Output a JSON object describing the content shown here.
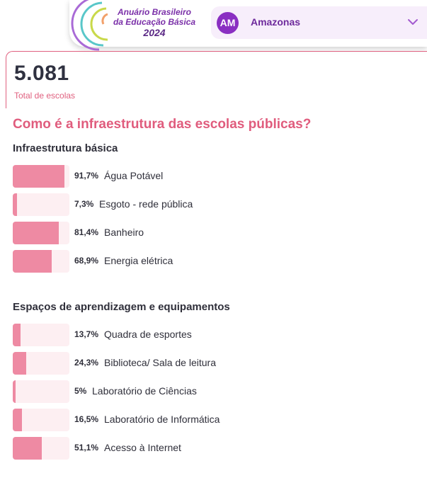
{
  "header": {
    "brand_line1": "Anuário Brasileiro",
    "brand_line2": "da Educação Básica",
    "brand_year": "2024",
    "state_abbr": "AM",
    "state_name": "Amazonas"
  },
  "total": {
    "value": "5.081",
    "label": "Total de escolas"
  },
  "question": "Como é a infraestrutura das escolas públicas?",
  "colors": {
    "accent": "#e05c7d",
    "bar_fill": "#ee8aa3",
    "bar_track": "#fdeff2",
    "purple": "#8a2fc2"
  },
  "chart_data": [
    {
      "type": "bar",
      "title": "Infraestrutura básica",
      "categories": [
        "Água Potável",
        "Esgoto - rede pública",
        "Banheiro",
        "Energia elétrica"
      ],
      "values": [
        91.7,
        7.3,
        81.4,
        68.9
      ],
      "labels": [
        "91,7%",
        "7,3%",
        "81,4%",
        "68,9%"
      ],
      "xlim": [
        0,
        100
      ]
    },
    {
      "type": "bar",
      "title": "Espaços de aprendizagem e equipamentos",
      "categories": [
        "Quadra de esportes",
        "Biblioteca/ Sala de leitura",
        "Laboratório de Ciências",
        "Laboratório de Informática",
        "Acesso à Internet"
      ],
      "values": [
        13.7,
        24.3,
        5,
        16.5,
        51.1
      ],
      "labels": [
        "13,7%",
        "24,3%",
        "5%",
        "16,5%",
        "51,1%"
      ],
      "xlim": [
        0,
        100
      ]
    }
  ]
}
